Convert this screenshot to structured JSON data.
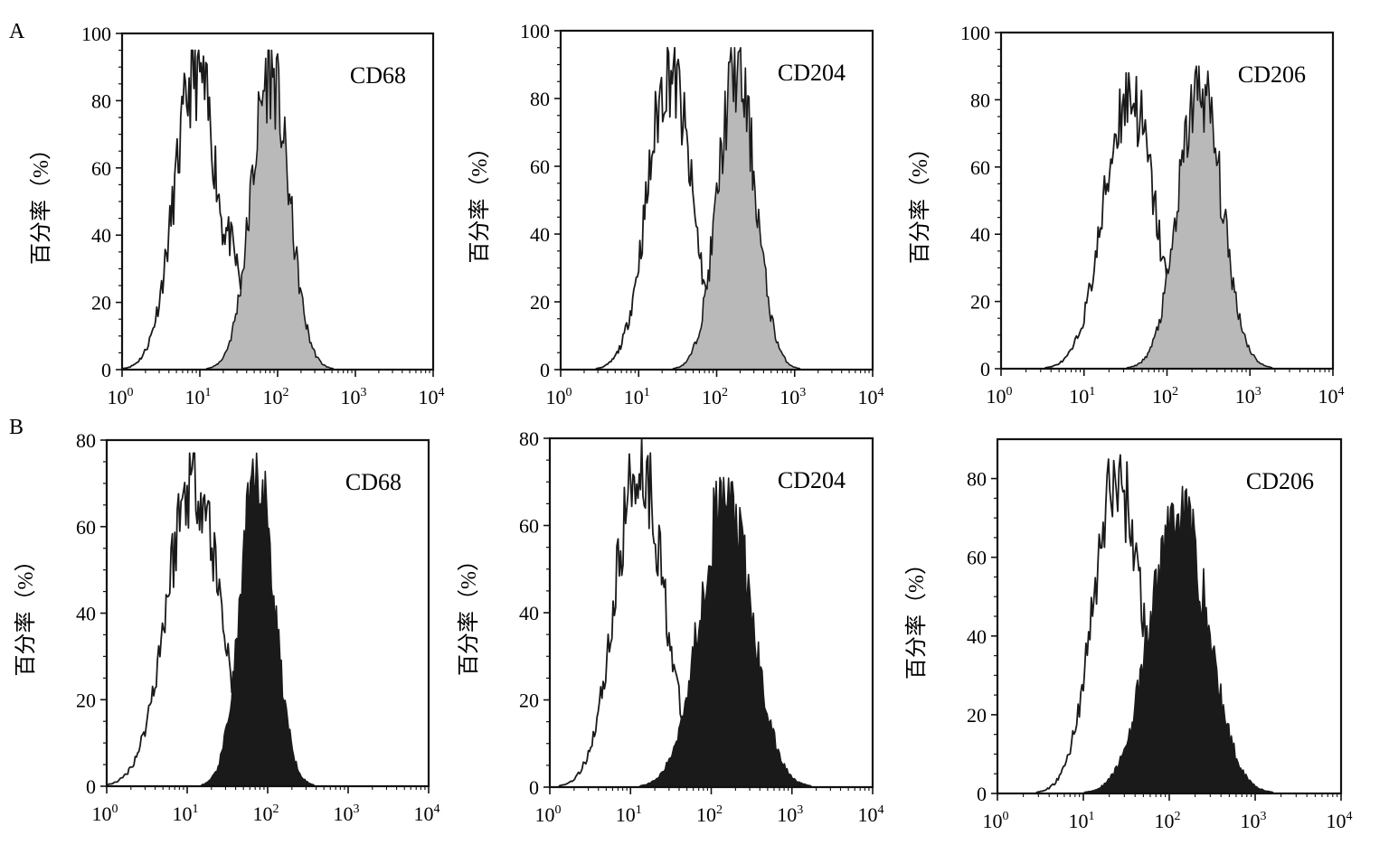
{
  "figure": {
    "panel_labels": [
      "A",
      "B"
    ],
    "ylabel": "百分率（%）",
    "xticks": [
      "10",
      "10",
      "10",
      "10",
      "10"
    ],
    "xtick_exponents": [
      "0",
      "1",
      "2",
      "3",
      "4"
    ]
  },
  "colors": {
    "isotype": "#1a1a1a",
    "marker_row_A": "#b9b9b9",
    "marker_row_B": "#1a1a1a",
    "axis": "#111111"
  },
  "chart_data": [
    {
      "type": "area",
      "panel": "A",
      "marker": "CD68",
      "xscale": "log",
      "xlim": [
        1,
        10000
      ],
      "ylim": [
        0,
        100
      ],
      "yticks": [
        "0",
        "20",
        "40",
        "60",
        "80",
        "100"
      ],
      "grid": false,
      "series": [
        {
          "role": "isotype",
          "peak_x": 9,
          "peak_y": 95,
          "width_decades": 0.28,
          "shoulder": {
            "x": 20,
            "y": 45
          }
        },
        {
          "role": "marker",
          "peak_x": 80,
          "peak_y": 95,
          "width_decades": 0.24
        }
      ]
    },
    {
      "type": "area",
      "panel": "A",
      "marker": "CD204",
      "xscale": "log",
      "xlim": [
        1,
        10000
      ],
      "ylim": [
        0,
        100
      ],
      "yticks": [
        "0",
        "20",
        "40",
        "60",
        "80",
        "100"
      ],
      "grid": false,
      "series": [
        {
          "role": "isotype",
          "peak_x": 25,
          "peak_y": 95,
          "width_decades": 0.28
        },
        {
          "role": "marker",
          "peak_x": 180,
          "peak_y": 95,
          "width_decades": 0.24
        }
      ]
    },
    {
      "type": "area",
      "panel": "A",
      "marker": "CD206",
      "xscale": "log",
      "xlim": [
        1,
        10000
      ],
      "ylim": [
        0,
        100
      ],
      "yticks": [
        "0",
        "20",
        "40",
        "60",
        "80",
        "100"
      ],
      "grid": false,
      "series": [
        {
          "role": "isotype",
          "peak_x": 35,
          "peak_y": 88,
          "width_decades": 0.3
        },
        {
          "role": "marker",
          "peak_x": 250,
          "peak_y": 90,
          "width_decades": 0.26
        }
      ]
    },
    {
      "type": "area",
      "panel": "B",
      "marker": "CD68",
      "xscale": "log",
      "xlim": [
        1,
        10000
      ],
      "ylim": [
        0,
        80
      ],
      "yticks": [
        "0",
        "20",
        "40",
        "60",
        "80"
      ],
      "grid": false,
      "series": [
        {
          "role": "isotype",
          "peak_x": 12,
          "peak_y": 77,
          "width_decades": 0.33
        },
        {
          "role": "marker",
          "peak_x": 75,
          "peak_y": 77,
          "width_decades": 0.21
        }
      ]
    },
    {
      "type": "area",
      "panel": "B",
      "marker": "CD204",
      "xscale": "log",
      "xlim": [
        1,
        10000
      ],
      "ylim": [
        0,
        80
      ],
      "yticks": [
        "0",
        "20",
        "40",
        "60",
        "80"
      ],
      "grid": false,
      "series": [
        {
          "role": "isotype",
          "peak_x": 13,
          "peak_y": 80,
          "width_decades": 0.3
        },
        {
          "role": "marker",
          "peak_x": 150,
          "peak_y": 71,
          "width_decades": 0.32
        }
      ]
    },
    {
      "type": "area",
      "panel": "B",
      "marker": "CD206",
      "xscale": "log",
      "xlim": [
        1,
        10000
      ],
      "ylim": [
        0,
        90
      ],
      "yticks": [
        "0",
        "20",
        "40",
        "60",
        "80"
      ],
      "grid": false,
      "series": [
        {
          "role": "isotype",
          "peak_x": 25,
          "peak_y": 86,
          "width_decades": 0.28
        },
        {
          "role": "marker",
          "peak_x": 130,
          "peak_y": 78,
          "width_decades": 0.33
        }
      ]
    }
  ]
}
